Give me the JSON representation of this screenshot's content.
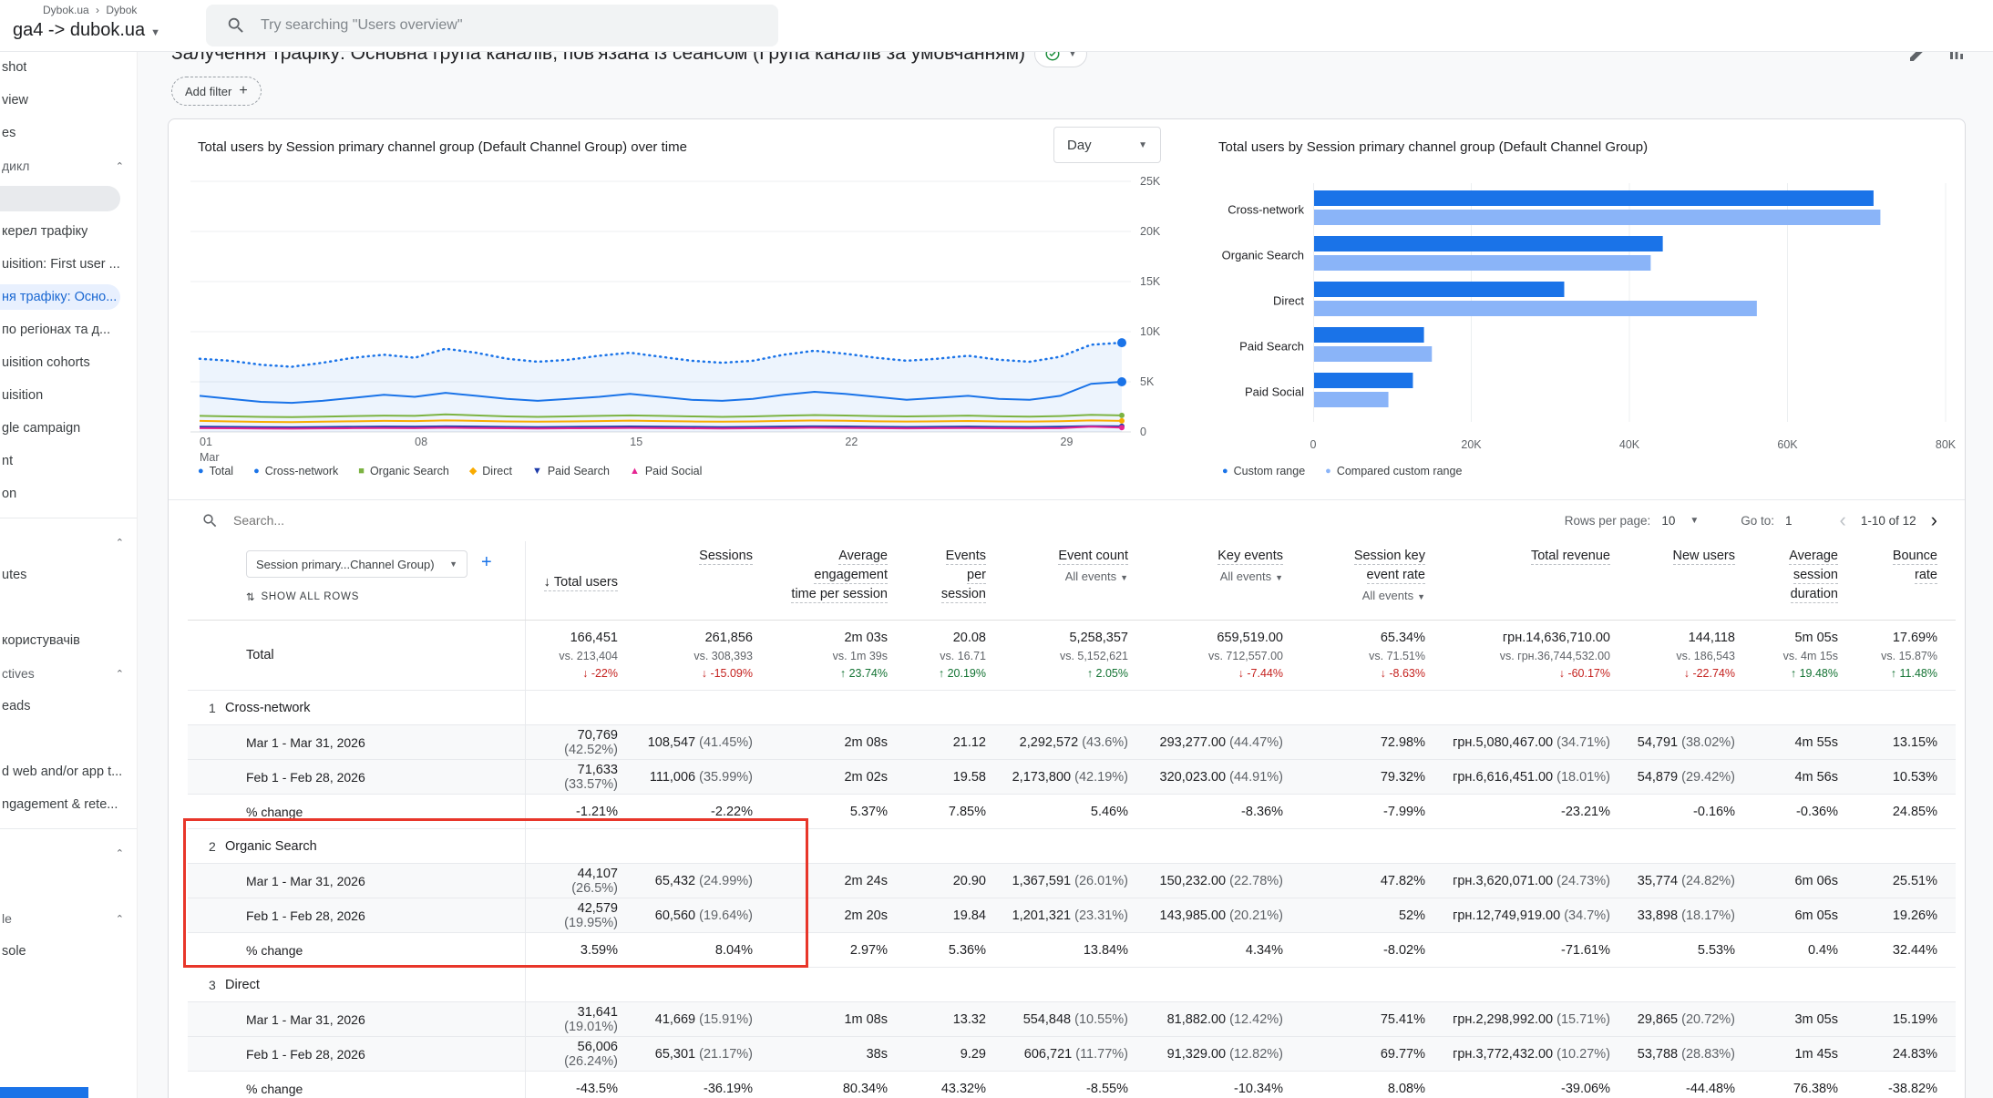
{
  "topbar": {
    "crumb1": "Dybok.ua",
    "crumb2": "Dybok",
    "property": "ga4 -> dubok.ua",
    "search_placeholder": "Try searching \"Users overview\""
  },
  "report": {
    "title": "Залучення трафіку: Основна група каналів, пов'язана із сеансом (Група каналів за умовчанням)",
    "add_filter_label": "Add filter"
  },
  "sidebar": {
    "items": [
      {
        "type": "item",
        "label": "shot"
      },
      {
        "type": "item",
        "label": "view"
      },
      {
        "type": "item",
        "label": "es"
      },
      {
        "type": "section",
        "label": "дикл",
        "chevron": "^"
      },
      {
        "type": "graypill",
        "label": ""
      },
      {
        "type": "item",
        "label": "керел трафіку"
      },
      {
        "type": "item",
        "label": "uisition: First user ..."
      },
      {
        "type": "active",
        "label": "ня трафіку: Осно..."
      },
      {
        "type": "item",
        "label": "по регіонах та д..."
      },
      {
        "type": "item",
        "label": "uisition cohorts"
      },
      {
        "type": "item",
        "label": "uisition"
      },
      {
        "type": "item",
        "label": "gle campaign"
      },
      {
        "type": "item",
        "label": "nt"
      },
      {
        "type": "item",
        "label": "on"
      },
      {
        "type": "divider"
      },
      {
        "type": "section",
        "label": "",
        "chevron": "^"
      },
      {
        "type": "item",
        "label": "utes"
      },
      {
        "type": "spacer"
      },
      {
        "type": "item",
        "label": "користувачів"
      },
      {
        "type": "section",
        "label": "ctives",
        "chevron": "^"
      },
      {
        "type": "item",
        "label": "eads"
      },
      {
        "type": "spacer"
      },
      {
        "type": "item",
        "label": "d web and/or app t..."
      },
      {
        "type": "item",
        "label": "ngagement & rete..."
      },
      {
        "type": "divider"
      },
      {
        "type": "section",
        "label": "",
        "chevron": "^"
      },
      {
        "type": "spacer"
      },
      {
        "type": "section",
        "label": "le",
        "chevron": "^"
      },
      {
        "type": "item",
        "label": "sole"
      }
    ]
  },
  "chart_data": [
    {
      "type": "line",
      "title": "Total users by Session primary channel group (Default Channel Group) over time",
      "granularity": "Day",
      "ylim": [
        0,
        25000
      ],
      "yticks": [
        "25K",
        "20K",
        "15K",
        "10K",
        "5K",
        "0"
      ],
      "xticks": [
        "01",
        "08",
        "15",
        "22",
        "29"
      ],
      "xtick_days": [
        0,
        7,
        14,
        21,
        28
      ],
      "month_label": "Mar",
      "series": [
        {
          "name": "Total",
          "color": "#1a73e8",
          "style": "dotted",
          "values": [
            7300,
            7100,
            6700,
            6500,
            6900,
            7400,
            7700,
            7400,
            8300,
            7900,
            7300,
            7000,
            7200,
            7600,
            7900,
            7500,
            7100,
            6900,
            7100,
            7700,
            8100,
            7800,
            7400,
            7100,
            7300,
            7600,
            7200,
            7000,
            7500,
            8700,
            8900
          ]
        },
        {
          "name": "Cross-network",
          "color": "#1a73e8",
          "style": "solid",
          "values": [
            3600,
            3300,
            3000,
            2900,
            3100,
            3400,
            3700,
            3500,
            3900,
            3600,
            3300,
            3100,
            3300,
            3500,
            3800,
            3500,
            3200,
            3100,
            3300,
            3700,
            4000,
            3800,
            3500,
            3200,
            3400,
            3600,
            3300,
            3200,
            3600,
            4800,
            5000
          ]
        },
        {
          "name": "Organic Search",
          "color": "#7cb342",
          "style": "solid",
          "values": [
            1600,
            1550,
            1500,
            1480,
            1520,
            1580,
            1620,
            1600,
            1750,
            1650,
            1550,
            1500,
            1550,
            1600,
            1650,
            1600,
            1550,
            1500,
            1550,
            1620,
            1680,
            1640,
            1580,
            1540,
            1580,
            1620,
            1560,
            1520,
            1580,
            1700,
            1650
          ]
        },
        {
          "name": "Direct",
          "color": "#f9ab00",
          "style": "solid",
          "values": [
            1100,
            1050,
            1000,
            980,
            1020,
            1060,
            1100,
            1080,
            1150,
            1100,
            1050,
            1020,
            1050,
            1080,
            1120,
            1080,
            1040,
            1020,
            1050,
            1100,
            1140,
            1110,
            1060,
            1030,
            1060,
            1090,
            1050,
            1030,
            1070,
            1150,
            1100
          ]
        },
        {
          "name": "Paid Search",
          "color": "#1c3aa9",
          "style": "solid",
          "values": [
            520,
            500,
            480,
            470,
            490,
            510,
            530,
            520,
            560,
            530,
            500,
            480,
            500,
            520,
            540,
            520,
            500,
            480,
            500,
            530,
            560,
            540,
            510,
            490,
            510,
            530,
            500,
            490,
            520,
            580,
            560
          ]
        },
        {
          "name": "Paid Social",
          "color": "#e52592",
          "style": "solid",
          "values": [
            380,
            360,
            340,
            330,
            350,
            370,
            390,
            380,
            420,
            390,
            360,
            340,
            360,
            380,
            400,
            380,
            360,
            340,
            360,
            390,
            420,
            400,
            370,
            350,
            370,
            390,
            360,
            350,
            380,
            520,
            430
          ]
        }
      ],
      "legend": [
        {
          "label": "Total",
          "color": "#1a73e8",
          "shape": "●"
        },
        {
          "label": "Cross-network",
          "color": "#1a73e8",
          "shape": "●"
        },
        {
          "label": "Organic Search",
          "color": "#7cb342",
          "shape": "■"
        },
        {
          "label": "Direct",
          "color": "#f9ab00",
          "shape": "◆"
        },
        {
          "label": "Paid Search",
          "color": "#1c3aa9",
          "shape": "▼"
        },
        {
          "label": "Paid Social",
          "color": "#e52592",
          "shape": "▲"
        }
      ]
    },
    {
      "type": "bar",
      "title": "Total users by Session primary channel group (Default Channel Group)",
      "categories": [
        "Cross-network",
        "Organic Search",
        "Direct",
        "Paid Search",
        "Paid Social"
      ],
      "xlim": [
        0,
        80000
      ],
      "xticks": [
        "0",
        "20K",
        "40K",
        "60K",
        "80K"
      ],
      "series": [
        {
          "name": "Custom range",
          "color": "#1a73e8",
          "values": [
            70769,
            44107,
            31641,
            13900,
            12500
          ]
        },
        {
          "name": "Compared custom range",
          "color": "#8ab4f8",
          "values": [
            71633,
            42579,
            56006,
            14900,
            9400
          ]
        }
      ]
    }
  ],
  "table": {
    "search_placeholder": "Search...",
    "rows_per_page_label": "Rows per page:",
    "rows_per_page_value": "10",
    "goto_label": "Go to:",
    "goto_value": "1",
    "range_label": "1-10 of 12",
    "dimension_button": "Session primary...Channel Group)",
    "show_all_rows": "SHOW ALL ROWS",
    "columns": [
      {
        "lines": [
          "Total users"
        ],
        "sorted": true
      },
      {
        "lines": [
          "Sessions"
        ]
      },
      {
        "lines": [
          "Average",
          "engagement",
          "time per session"
        ]
      },
      {
        "lines": [
          "Events",
          "per",
          "session"
        ]
      },
      {
        "lines": [
          "Event count"
        ],
        "sub": "All events"
      },
      {
        "lines": [
          "Key events"
        ],
        "sub": "All events"
      },
      {
        "lines": [
          "Session key",
          "event rate"
        ],
        "sub": "All events"
      },
      {
        "lines": [
          "Total revenue"
        ]
      },
      {
        "lines": [
          "New users"
        ]
      },
      {
        "lines": [
          "Average",
          "session",
          "duration"
        ]
      },
      {
        "lines": [
          "Bounce",
          "rate"
        ]
      }
    ],
    "totals": {
      "label": "Total",
      "cells": [
        {
          "main": "166,451",
          "vs": "vs. 213,404",
          "chg": "-22%",
          "dir": "down"
        },
        {
          "main": "261,856",
          "vs": "vs. 308,393",
          "chg": "-15.09%",
          "dir": "down"
        },
        {
          "main": "2m 03s",
          "vs": "vs. 1m 39s",
          "chg": "23.74%",
          "dir": "up"
        },
        {
          "main": "20.08",
          "vs": "vs. 16.71",
          "chg": "20.19%",
          "dir": "up"
        },
        {
          "main": "5,258,357",
          "vs": "vs. 5,152,621",
          "chg": "2.05%",
          "dir": "up"
        },
        {
          "main": "659,519.00",
          "vs": "vs. 712,557.00",
          "chg": "-7.44%",
          "dir": "down"
        },
        {
          "main": "65.34%",
          "vs": "vs. 71.51%",
          "chg": "-8.63%",
          "dir": "down"
        },
        {
          "main": "грн.14,636,710.00",
          "vs": "vs. грн.36,744,532.00",
          "chg": "-60.17%",
          "dir": "down"
        },
        {
          "main": "144,118",
          "vs": "vs. 186,543",
          "chg": "-22.74%",
          "dir": "down"
        },
        {
          "main": "5m 05s",
          "vs": "vs. 4m 15s",
          "chg": "19.48%",
          "dir": "up"
        },
        {
          "main": "17.69%",
          "vs": "vs. 15.87%",
          "chg": "11.48%",
          "dir": "up"
        }
      ]
    },
    "groups": [
      {
        "num": "1",
        "name": "Cross-network",
        "rows": [
          {
            "label": "Mar 1 - Mar 31, 2026",
            "cells": [
              "70,769 (42.52%)",
              "108,547 (41.45%)",
              "2m 08s",
              "21.12",
              "2,292,572 (43.6%)",
              "293,277.00 (44.47%)",
              "72.98%",
              "грн.5,080,467.00 (34.71%)",
              "54,791 (38.02%)",
              "4m 55s",
              "13.15%"
            ]
          },
          {
            "label": "Feb 1 - Feb 28, 2026",
            "cells": [
              "71,633 (33.57%)",
              "111,006 (35.99%)",
              "2m 02s",
              "19.58",
              "2,173,800 (42.19%)",
              "320,023.00 (44.91%)",
              "79.32%",
              "грн.6,616,451.00 (18.01%)",
              "54,879 (29.42%)",
              "4m 56s",
              "10.53%"
            ]
          },
          {
            "label": "% change",
            "cells": [
              "-1.21%",
              "-2.22%",
              "5.37%",
              "7.85%",
              "5.46%",
              "-8.36%",
              "-7.99%",
              "-23.21%",
              "-0.16%",
              "-0.36%",
              "24.85%"
            ]
          }
        ]
      },
      {
        "num": "2",
        "name": "Organic Search",
        "rows": [
          {
            "label": "Mar 1 - Mar 31, 2026",
            "cells": [
              "44,107 (26.5%)",
              "65,432 (24.99%)",
              "2m 24s",
              "20.90",
              "1,367,591 (26.01%)",
              "150,232.00 (22.78%)",
              "47.82%",
              "грн.3,620,071.00 (24.73%)",
              "35,774 (24.82%)",
              "6m 06s",
              "25.51%"
            ]
          },
          {
            "label": "Feb 1 - Feb 28, 2026",
            "cells": [
              "42,579 (19.95%)",
              "60,560 (19.64%)",
              "2m 20s",
              "19.84",
              "1,201,321 (23.31%)",
              "143,985.00 (20.21%)",
              "52%",
              "грн.12,749,919.00 (34.7%)",
              "33,898 (18.17%)",
              "6m 05s",
              "19.26%"
            ]
          },
          {
            "label": "% change",
            "cells": [
              "3.59%",
              "8.04%",
              "2.97%",
              "5.36%",
              "13.84%",
              "4.34%",
              "-8.02%",
              "-71.61%",
              "5.53%",
              "0.4%",
              "32.44%"
            ]
          }
        ]
      },
      {
        "num": "3",
        "name": "Direct",
        "rows": [
          {
            "label": "Mar 1 - Mar 31, 2026",
            "cells": [
              "31,641 (19.01%)",
              "41,669 (15.91%)",
              "1m 08s",
              "13.32",
              "554,848 (10.55%)",
              "81,882.00 (12.42%)",
              "75.41%",
              "грн.2,298,992.00 (15.71%)",
              "29,865 (20.72%)",
              "3m 05s",
              "15.19%"
            ]
          },
          {
            "label": "Feb 1 - Feb 28, 2026",
            "cells": [
              "56,006 (26.24%)",
              "65,301 (21.17%)",
              "38s",
              "9.29",
              "606,721 (11.77%)",
              "91,329.00 (12.82%)",
              "69.77%",
              "грн.3,772,432.00 (10.27%)",
              "53,788 (28.83%)",
              "1m 45s",
              "24.83%"
            ]
          },
          {
            "label": "% change",
            "cells": [
              "-43.5%",
              "-36.19%",
              "80.34%",
              "43.32%",
              "-8.55%",
              "-10.34%",
              "8.08%",
              "-39.06%",
              "-44.48%",
              "76.38%",
              "-38.82%"
            ]
          }
        ]
      }
    ]
  },
  "colors": {
    "accent_blue": "#1a73e8",
    "compare_blue": "#8ab4f8",
    "positive_green": "#137333",
    "negative_red": "#c5221f",
    "annotation_red": "#e8362a",
    "check_green": "#1e8e3e"
  }
}
